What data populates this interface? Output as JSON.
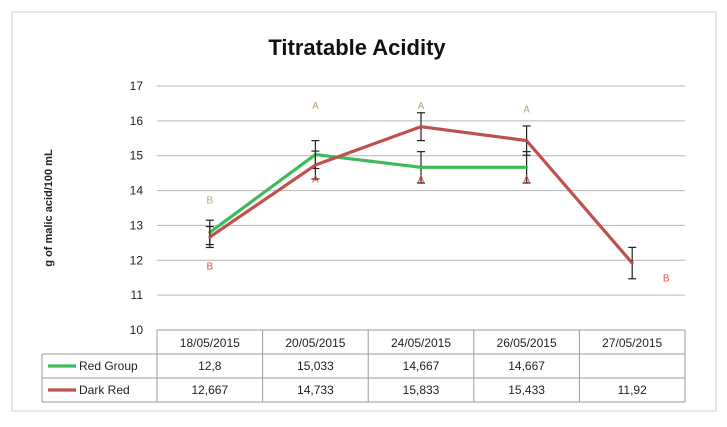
{
  "chart_data": {
    "type": "line",
    "title": "Titratable Acidity",
    "ylabel": "g of malic acid/100 mL",
    "xlabel": "",
    "ylim": [
      10,
      17
    ],
    "yticks": [
      10,
      11,
      12,
      13,
      14,
      15,
      16,
      17
    ],
    "grid": true,
    "categories": [
      "18/05/2015",
      "20/05/2015",
      "24/05/2015",
      "26/05/2015",
      "27/05/2015"
    ],
    "series": [
      {
        "name": "Red Group",
        "color": "#3dbb5b",
        "values": [
          12.8,
          15.033,
          14.667,
          14.667,
          null
        ],
        "table_values": [
          "12,8",
          "15,033",
          "14,667",
          "14,667",
          ""
        ],
        "error": [
          0.35,
          0.4,
          0.45,
          0.45,
          null
        ],
        "letters": [
          "B",
          "A",
          "A",
          "A",
          ""
        ],
        "letter_color": "#b9a27a",
        "letter_y": [
          13.75,
          16.45,
          16.45,
          16.35,
          null
        ]
      },
      {
        "name": "Dark Red",
        "color": "#c0504d",
        "values": [
          12.667,
          14.733,
          15.833,
          15.433,
          11.92
        ],
        "table_values": [
          "12,667",
          "14,733",
          "15,833",
          "15,433",
          "11,92"
        ],
        "error": [
          0.3,
          0.4,
          0.4,
          0.42,
          0.45
        ],
        "letters": [
          "B",
          "A",
          "A",
          "A",
          "B"
        ],
        "letter_color": "#d9534f",
        "letter_y": [
          11.85,
          14.35,
          14.35,
          14.35,
          11.5
        ]
      }
    ]
  }
}
